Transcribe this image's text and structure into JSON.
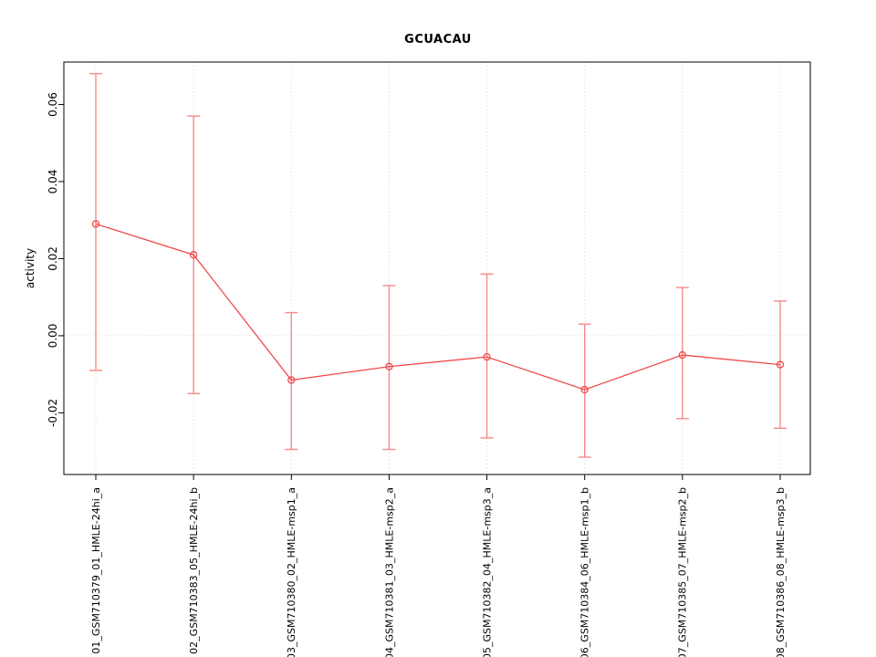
{
  "chart_data": {
    "type": "line",
    "title": "GCUACAU",
    "ylabel": "activity",
    "xlabel": "",
    "categories": [
      "01_GSM710379_01_HMLE-24hi_a",
      "02_GSM710383_05_HMLE-24hi_b",
      "03_GSM710380_02_HMLE-msp1_a",
      "04_GSM710381_03_HMLE-msp2_a",
      "05_GSM710382_04_HMLE-msp3_a",
      "06_GSM710384_06_HMLE-msp1_b",
      "07_GSM710385_07_HMLE-msp2_b",
      "08_GSM710386_08_HMLE-msp3_b"
    ],
    "values": [
      0.029,
      0.021,
      -0.0115,
      -0.008,
      -0.0055,
      -0.014,
      -0.005,
      -0.0075
    ],
    "error_low": [
      -0.009,
      -0.015,
      -0.0295,
      -0.0295,
      -0.0265,
      -0.0315,
      -0.0215,
      -0.024
    ],
    "error_high": [
      0.068,
      0.057,
      0.006,
      0.013,
      0.016,
      0.003,
      0.0125,
      0.009
    ],
    "yticks": [
      -0.02,
      0,
      0.02,
      0.04,
      0.06
    ],
    "ytick_labels": [
      "-0.02",
      "0.00",
      "0.02",
      "0.04",
      "0.06"
    ],
    "ylim": [
      -0.036,
      0.071
    ],
    "zero_line": 0,
    "grid": "dotted vertical line at each category, dotted horizontal line at y=0",
    "legend": "none",
    "colors": {
      "line": "#f04a4a",
      "marker": "#f04a4a",
      "error_bar": "#f58a8a",
      "grid": "#d9d9d9",
      "axis": "#000000",
      "background": "#ffffff"
    }
  }
}
